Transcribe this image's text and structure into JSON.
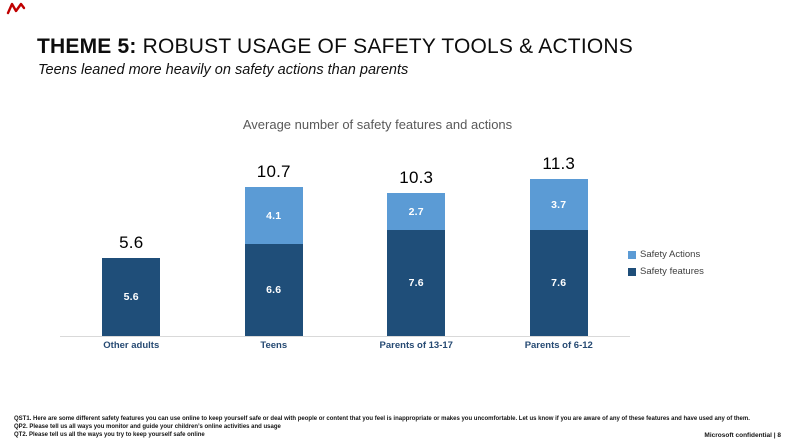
{
  "slide": {
    "title_bold": "THEME 5:",
    "title_rest": " ROBUST USAGE OF SAFETY TOOLS & ACTIONS",
    "subtitle": "Teens leaned more heavily on safety actions than parents"
  },
  "chart_data": {
    "type": "bar",
    "stacked": true,
    "title": "Average number of safety features and actions",
    "categories": [
      "Other adults",
      "Teens",
      "Parents of 13-17",
      "Parents of 6-12"
    ],
    "series": [
      {
        "name": "Safety features",
        "color": "#1F4E79",
        "values": [
          5.6,
          6.6,
          7.6,
          7.6
        ]
      },
      {
        "name": "Safety Actions",
        "color": "#5B9BD5",
        "values": [
          null,
          4.1,
          2.7,
          3.7
        ]
      }
    ],
    "totals": [
      "5.6",
      "10.7",
      "10.3",
      "11.3"
    ],
    "ylim": [
      0,
      12
    ],
    "grid": false,
    "legend_position": "right",
    "legend": [
      {
        "label": "Safety Actions",
        "color": "#5B9BD5"
      },
      {
        "label": "Safety features",
        "color": "#1F4E79"
      }
    ],
    "colors": {
      "axis_line": "#d9d9d9",
      "accent_red": "#c00000"
    }
  },
  "footer": {
    "lines": [
      "QST1. Here are some different safety features you can use online to keep yourself safe or deal with people or content that you feel is inappropriate or makes you uncomfortable.  Let us know if you are aware of any of these features and have used any of them.",
      "QP2. Please tell us all ways you monitor and guide your children’s online activities and usage",
      "QT2. Please tell us all the ways you try to keep yourself safe online"
    ],
    "confidential": "Microsoft confidential | 8"
  }
}
